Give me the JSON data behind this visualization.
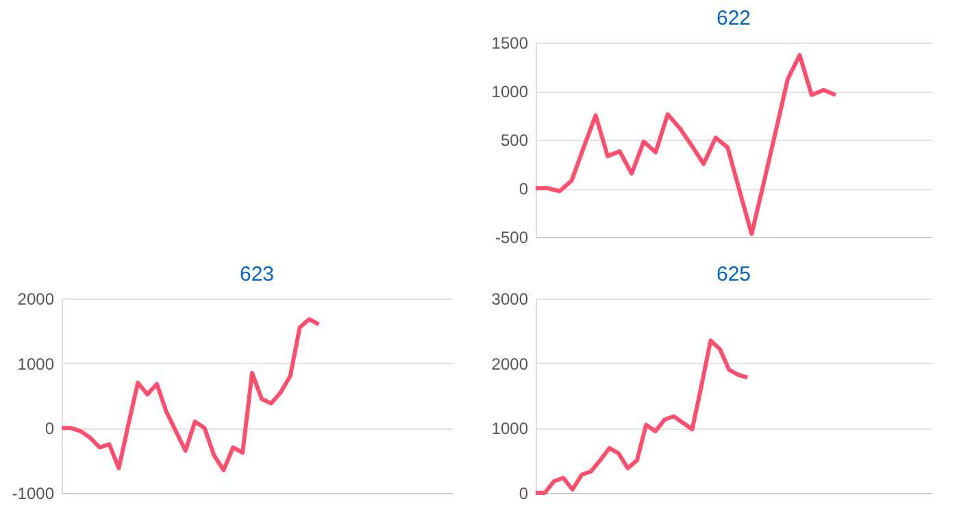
{
  "chart_data": [
    {
      "type": "line",
      "title": "622",
      "categories": [
        null,
        null,
        null,
        null,
        null,
        null,
        null,
        null,
        null,
        null,
        null,
        null,
        null,
        null,
        null,
        null,
        null,
        null,
        null,
        null,
        null,
        null,
        null,
        null,
        null,
        null,
        null,
        null,
        null,
        null,
        null,
        null,
        null,
        null
      ],
      "series": [
        {
          "color": "#ff4d6d",
          "values": [
            0,
            0,
            -30,
            80,
            420,
            750,
            330,
            380,
            150,
            480,
            370,
            760,
            620,
            440,
            250,
            520,
            420,
            -30,
            -470,
            50,
            580,
            1120,
            1370,
            960,
            1010,
            960,
            null,
            null,
            null,
            null,
            null,
            null,
            null,
            null
          ]
        }
      ],
      "ylim": [
        -500,
        1500
      ],
      "yticks": [
        -500,
        0,
        500,
        1000,
        1500
      ],
      "grid": "y",
      "tick_labels": "y",
      "marker": "none",
      "line_style": "solid"
    },
    {
      "type": "line",
      "title": "623",
      "categories": [
        null,
        null,
        null,
        null,
        null,
        null,
        null,
        null,
        null,
        null,
        null,
        null,
        null,
        null,
        null,
        null,
        null,
        null,
        null,
        null,
        null,
        null,
        null,
        null,
        null,
        null,
        null,
        null,
        null,
        null,
        null,
        null,
        null,
        null,
        null,
        null,
        null,
        null,
        null,
        null,
        null,
        null
      ],
      "series": [
        {
          "color": "#ff4d6d",
          "values": [
            0,
            0,
            -50,
            -150,
            -300,
            -250,
            -620,
            50,
            700,
            520,
            680,
            250,
            -50,
            -350,
            100,
            0,
            -420,
            -650,
            -300,
            -380,
            850,
            450,
            380,
            550,
            800,
            1550,
            1680,
            1600,
            null,
            null,
            null,
            null,
            null,
            null,
            null,
            null,
            null,
            null,
            null,
            null,
            null,
            null
          ]
        }
      ],
      "ylim": [
        -1000,
        2000
      ],
      "yticks": [
        -1000,
        0,
        1000,
        2000
      ],
      "grid": "y",
      "tick_labels": "y",
      "marker": "none",
      "line_style": "solid"
    },
    {
      "type": "line",
      "title": "625",
      "categories": [
        null,
        null,
        null,
        null,
        null,
        null,
        null,
        null,
        null,
        null,
        null,
        null,
        null,
        null,
        null,
        null,
        null,
        null,
        null,
        null,
        null,
        null,
        null,
        null,
        null,
        null,
        null,
        null,
        null,
        null,
        null,
        null,
        null,
        null,
        null,
        null,
        null,
        null,
        null,
        null,
        null,
        null,
        null,
        null
      ],
      "series": [
        {
          "color": "#ff4d6d",
          "values": [
            0,
            0,
            180,
            230,
            50,
            280,
            330,
            500,
            690,
            610,
            380,
            500,
            1050,
            950,
            1130,
            1180,
            1080,
            980,
            1650,
            2350,
            2220,
            1900,
            1820,
            1780,
            null,
            null,
            null,
            null,
            null,
            null,
            null,
            null,
            null,
            null,
            null,
            null,
            null,
            null,
            null,
            null,
            null,
            null,
            null,
            null
          ]
        }
      ],
      "ylim": [
        0,
        3000
      ],
      "yticks": [
        0,
        1000,
        2000,
        3000
      ],
      "grid": "y",
      "tick_labels": "y",
      "marker": "none",
      "line_style": "solid"
    }
  ]
}
